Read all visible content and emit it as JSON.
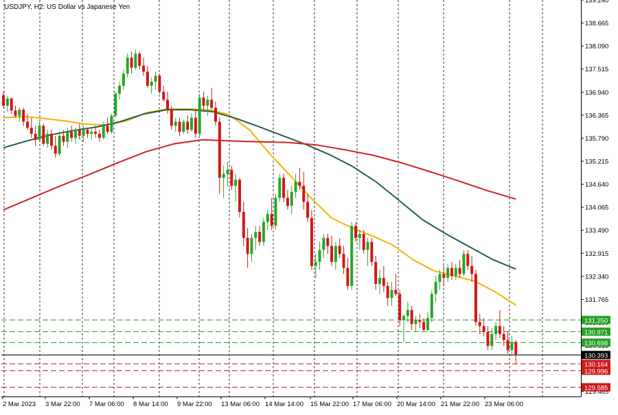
{
  "chart_data": {
    "type": "candlestick",
    "symbol": "USDJPY",
    "timeframe": "H2",
    "description": "US Dollar vs Japanese Yen",
    "y_axis": {
      "range": [
        129.34,
        139.24
      ],
      "ticks": [
        "139.240",
        "138.665",
        "138.090",
        "137.515",
        "136.940",
        "136.365",
        "135.790",
        "135.215",
        "134.640",
        "134.065",
        "133.490",
        "132.915",
        "132.340",
        "131.765",
        "131.190",
        "130.615",
        "130.040",
        "129.465"
      ]
    },
    "x_axis": {
      "ticks": [
        "2 Mar 2023",
        "3 Mar 22:00",
        "7 Mar 06:00",
        "8 Mar 14:00",
        "9 Mar 22:00",
        "13 Mar 06:00",
        "14 Mar 14:00",
        "15 Mar 22:00",
        "17 Mar 06:00",
        "20 Mar 14:00",
        "21 Mar 22:00",
        "23 Mar 06:00"
      ]
    },
    "vertical_grid_dates": [
      "2 Mar 2023",
      "3 Mar 22:00",
      "7 Mar 06:00",
      "8 Mar 14:00",
      "9 Mar 22:00",
      "13 Mar 06:00",
      "14 Mar 14:00",
      "15 Mar 22:00",
      "17 Mar 06:00",
      "20 Mar 14:00",
      "21 Mar 22:00",
      "23 Mar 06:00"
    ],
    "price_levels": [
      {
        "value": 131.25,
        "label": "131.250",
        "color": "#23a023",
        "style": "dashed"
      },
      {
        "value": 130.971,
        "label": "130.971",
        "color": "#23a023",
        "style": "dashed"
      },
      {
        "value": 130.698,
        "label": "130.698",
        "color": "#23a023",
        "style": "dashed"
      },
      {
        "value": 130.393,
        "label": "130.393",
        "color": "#000000",
        "style": "solid"
      },
      {
        "value": 130.164,
        "label": "130.164",
        "color": "#d01818",
        "style": "dashed"
      },
      {
        "value": 129.996,
        "label": "129.996",
        "color": "#d01818",
        "style": "dashed"
      },
      {
        "value": 129.585,
        "label": "129.585",
        "color": "#d01818",
        "style": "dashed"
      }
    ],
    "moving_averages": [
      {
        "color": "#f4b400",
        "values": [
          136.3,
          136.33,
          136.28,
          136.22,
          136.14,
          136.12,
          136.22,
          136.43,
          136.52,
          136.52,
          136.5,
          136.38,
          136.0,
          135.4,
          134.85,
          134.3,
          133.8,
          133.55,
          133.35,
          133.12,
          132.75,
          132.48,
          132.35,
          132.22,
          131.95,
          131.62
        ]
      },
      {
        "color": "#1f5e4a",
        "values": [
          135.55,
          135.72,
          135.87,
          135.98,
          136.07,
          136.2,
          136.39,
          136.5,
          136.5,
          136.45,
          136.28,
          136.07,
          135.85,
          135.63,
          135.38,
          135.08,
          134.7,
          134.23,
          133.75,
          133.4,
          133.08,
          132.76,
          132.52
        ]
      },
      {
        "color": "#d42020",
        "values": [
          134.0,
          134.3,
          134.6,
          134.88,
          135.17,
          135.45,
          135.65,
          135.75,
          135.72,
          135.7,
          135.68,
          135.62,
          135.5,
          135.36,
          135.17,
          134.95,
          134.72,
          134.48,
          134.27
        ]
      }
    ],
    "up_color": "#26a626",
    "down_color": "#d01818",
    "candles": [
      [
        136.86,
        136.95,
        136.55,
        136.6
      ],
      [
        136.6,
        136.85,
        136.45,
        136.78
      ],
      [
        136.78,
        136.8,
        136.4,
        136.48
      ],
      [
        136.48,
        136.6,
        136.3,
        136.35
      ],
      [
        136.35,
        136.55,
        136.2,
        136.5
      ],
      [
        136.5,
        136.55,
        136.1,
        136.2
      ],
      [
        136.2,
        136.4,
        136.0,
        136.05
      ],
      [
        136.05,
        136.3,
        135.8,
        135.9
      ],
      [
        135.9,
        136.1,
        135.6,
        135.75
      ],
      [
        135.75,
        136.2,
        135.7,
        136.1
      ],
      [
        136.1,
        136.15,
        135.6,
        135.65
      ],
      [
        135.65,
        136.0,
        135.55,
        135.9
      ],
      [
        135.9,
        136.0,
        135.5,
        135.6
      ],
      [
        135.6,
        135.85,
        135.3,
        135.4
      ],
      [
        135.4,
        135.95,
        135.35,
        135.85
      ],
      [
        135.85,
        136.0,
        135.6,
        135.7
      ],
      [
        135.7,
        136.05,
        135.55,
        135.95
      ],
      [
        135.95,
        136.1,
        135.7,
        135.8
      ],
      [
        135.8,
        136.05,
        135.65,
        136.0
      ],
      [
        136.0,
        136.15,
        135.75,
        135.85
      ],
      [
        135.85,
        136.1,
        135.7,
        136.0
      ],
      [
        136.0,
        136.05,
        135.8,
        135.9
      ],
      [
        135.9,
        136.05,
        135.75,
        135.95
      ],
      [
        135.95,
        136.1,
        135.8,
        135.9
      ],
      [
        135.9,
        136.0,
        135.7,
        135.8
      ],
      [
        135.8,
        136.2,
        135.75,
        136.1
      ],
      [
        136.1,
        136.3,
        135.9,
        135.95
      ],
      [
        135.95,
        136.4,
        135.9,
        136.35
      ],
      [
        136.35,
        136.95,
        136.3,
        136.9
      ],
      [
        136.9,
        137.2,
        136.75,
        137.1
      ],
      [
        137.1,
        137.5,
        137.0,
        137.4
      ],
      [
        137.4,
        137.9,
        137.3,
        137.8
      ],
      [
        137.8,
        137.95,
        137.4,
        137.55
      ],
      [
        137.55,
        138.0,
        137.5,
        137.9
      ],
      [
        137.9,
        137.95,
        137.5,
        137.6
      ],
      [
        137.6,
        137.8,
        137.35,
        137.45
      ],
      [
        137.45,
        137.6,
        137.05,
        137.1
      ],
      [
        137.1,
        137.3,
        136.9,
        137.2
      ],
      [
        137.2,
        137.45,
        137.0,
        137.35
      ],
      [
        137.35,
        137.4,
        136.9,
        136.95
      ],
      [
        136.95,
        137.1,
        136.7,
        136.75
      ],
      [
        136.75,
        136.95,
        136.4,
        136.5
      ],
      [
        136.5,
        136.6,
        136.0,
        136.1
      ],
      [
        136.1,
        136.3,
        135.95,
        136.2
      ],
      [
        136.2,
        136.3,
        135.85,
        135.95
      ],
      [
        135.95,
        136.25,
        135.9,
        136.2
      ],
      [
        136.2,
        136.35,
        135.9,
        136.0
      ],
      [
        136.0,
        136.4,
        135.95,
        136.3
      ],
      [
        136.3,
        136.5,
        135.8,
        135.9
      ],
      [
        135.9,
        136.9,
        135.85,
        136.8
      ],
      [
        136.8,
        136.95,
        136.5,
        136.6
      ],
      [
        136.6,
        136.85,
        136.35,
        136.75
      ],
      [
        136.75,
        137.05,
        136.5,
        136.55
      ],
      [
        136.55,
        136.7,
        136.1,
        136.2
      ],
      [
        136.2,
        136.3,
        134.4,
        134.8
      ],
      [
        134.8,
        135.1,
        134.3,
        134.9
      ],
      [
        134.9,
        135.2,
        134.6,
        135.0
      ],
      [
        135.0,
        135.1,
        134.5,
        134.6
      ],
      [
        134.6,
        134.9,
        134.2,
        134.75
      ],
      [
        134.75,
        134.8,
        133.8,
        133.95
      ],
      [
        133.95,
        134.2,
        133.1,
        133.3
      ],
      [
        133.3,
        133.55,
        132.55,
        132.9
      ],
      [
        132.9,
        133.4,
        132.7,
        133.3
      ],
      [
        133.3,
        133.6,
        133.0,
        133.45
      ],
      [
        133.45,
        133.6,
        133.1,
        133.2
      ],
      [
        133.2,
        133.8,
        133.1,
        133.7
      ],
      [
        133.7,
        134.0,
        133.5,
        133.9
      ],
      [
        133.9,
        134.3,
        133.5,
        133.6
      ],
      [
        133.6,
        134.4,
        133.5,
        134.3
      ],
      [
        134.3,
        134.9,
        134.2,
        134.8
      ],
      [
        134.8,
        134.9,
        134.2,
        134.3
      ],
      [
        134.3,
        134.5,
        134.0,
        134.1
      ],
      [
        134.1,
        134.6,
        133.9,
        134.45
      ],
      [
        134.45,
        134.9,
        134.3,
        134.7
      ],
      [
        134.7,
        135.05,
        134.5,
        134.6
      ],
      [
        134.6,
        134.95,
        134.0,
        134.2
      ],
      [
        134.2,
        134.4,
        133.7,
        133.8
      ],
      [
        133.8,
        134.0,
        132.5,
        132.6
      ],
      [
        132.6,
        132.9,
        132.3,
        132.7
      ],
      [
        132.7,
        133.2,
        132.5,
        133.0
      ],
      [
        133.0,
        133.4,
        132.8,
        133.3
      ],
      [
        133.3,
        133.4,
        132.9,
        133.1
      ],
      [
        133.1,
        133.35,
        132.6,
        132.7
      ],
      [
        132.7,
        133.2,
        132.5,
        133.1
      ],
      [
        133.1,
        133.3,
        132.8,
        132.9
      ],
      [
        132.9,
        133.1,
        132.4,
        132.55
      ],
      [
        132.55,
        132.8,
        132.0,
        132.1
      ],
      [
        132.1,
        133.7,
        132.0,
        133.6
      ],
      [
        133.6,
        133.7,
        133.2,
        133.3
      ],
      [
        133.3,
        133.5,
        133.0,
        133.4
      ],
      [
        133.4,
        133.5,
        132.9,
        133.0
      ],
      [
        133.0,
        133.3,
        132.6,
        133.2
      ],
      [
        133.2,
        133.3,
        132.6,
        132.7
      ],
      [
        132.7,
        132.85,
        132.0,
        132.15
      ],
      [
        132.15,
        132.5,
        131.9,
        132.3
      ],
      [
        132.3,
        132.6,
        131.95,
        132.1
      ],
      [
        132.1,
        132.2,
        131.6,
        131.8
      ],
      [
        131.8,
        132.2,
        131.6,
        132.0
      ],
      [
        132.0,
        132.4,
        131.85,
        131.9
      ],
      [
        131.9,
        132.0,
        131.1,
        131.25
      ],
      [
        131.25,
        131.4,
        130.7,
        131.35
      ],
      [
        131.35,
        131.7,
        131.2,
        131.5
      ],
      [
        131.5,
        131.6,
        131.0,
        131.15
      ],
      [
        131.15,
        131.35,
        130.95,
        131.25
      ],
      [
        131.25,
        131.4,
        131.05,
        131.2
      ],
      [
        131.2,
        131.3,
        130.98,
        131.0
      ],
      [
        131.0,
        131.45,
        130.98,
        131.3
      ],
      [
        131.3,
        132.0,
        131.2,
        131.9
      ],
      [
        131.9,
        132.35,
        131.7,
        132.2
      ],
      [
        132.2,
        132.5,
        132.0,
        132.4
      ],
      [
        132.4,
        132.6,
        132.1,
        132.3
      ],
      [
        132.3,
        132.65,
        132.2,
        132.55
      ],
      [
        132.55,
        132.7,
        132.25,
        132.35
      ],
      [
        132.35,
        132.65,
        132.25,
        132.55
      ],
      [
        132.55,
        132.75,
        132.3,
        132.4
      ],
      [
        132.4,
        133.0,
        132.35,
        132.9
      ],
      [
        132.9,
        133.0,
        132.5,
        132.6
      ],
      [
        132.6,
        132.85,
        132.2,
        132.4
      ],
      [
        132.4,
        132.5,
        131.1,
        131.2
      ],
      [
        131.2,
        131.4,
        130.9,
        131.1
      ],
      [
        131.1,
        131.3,
        130.85,
        130.95
      ],
      [
        130.95,
        131.1,
        130.5,
        130.6
      ],
      [
        130.6,
        131.05,
        130.5,
        130.9
      ],
      [
        130.9,
        131.2,
        130.75,
        131.1
      ],
      [
        131.1,
        131.5,
        130.8,
        130.9
      ],
      [
        130.9,
        131.1,
        130.6,
        130.75
      ],
      [
        130.75,
        130.95,
        130.4,
        130.5
      ],
      [
        130.5,
        130.85,
        130.35,
        130.7
      ],
      [
        130.7,
        130.75,
        130.15,
        130.39
      ]
    ]
  }
}
